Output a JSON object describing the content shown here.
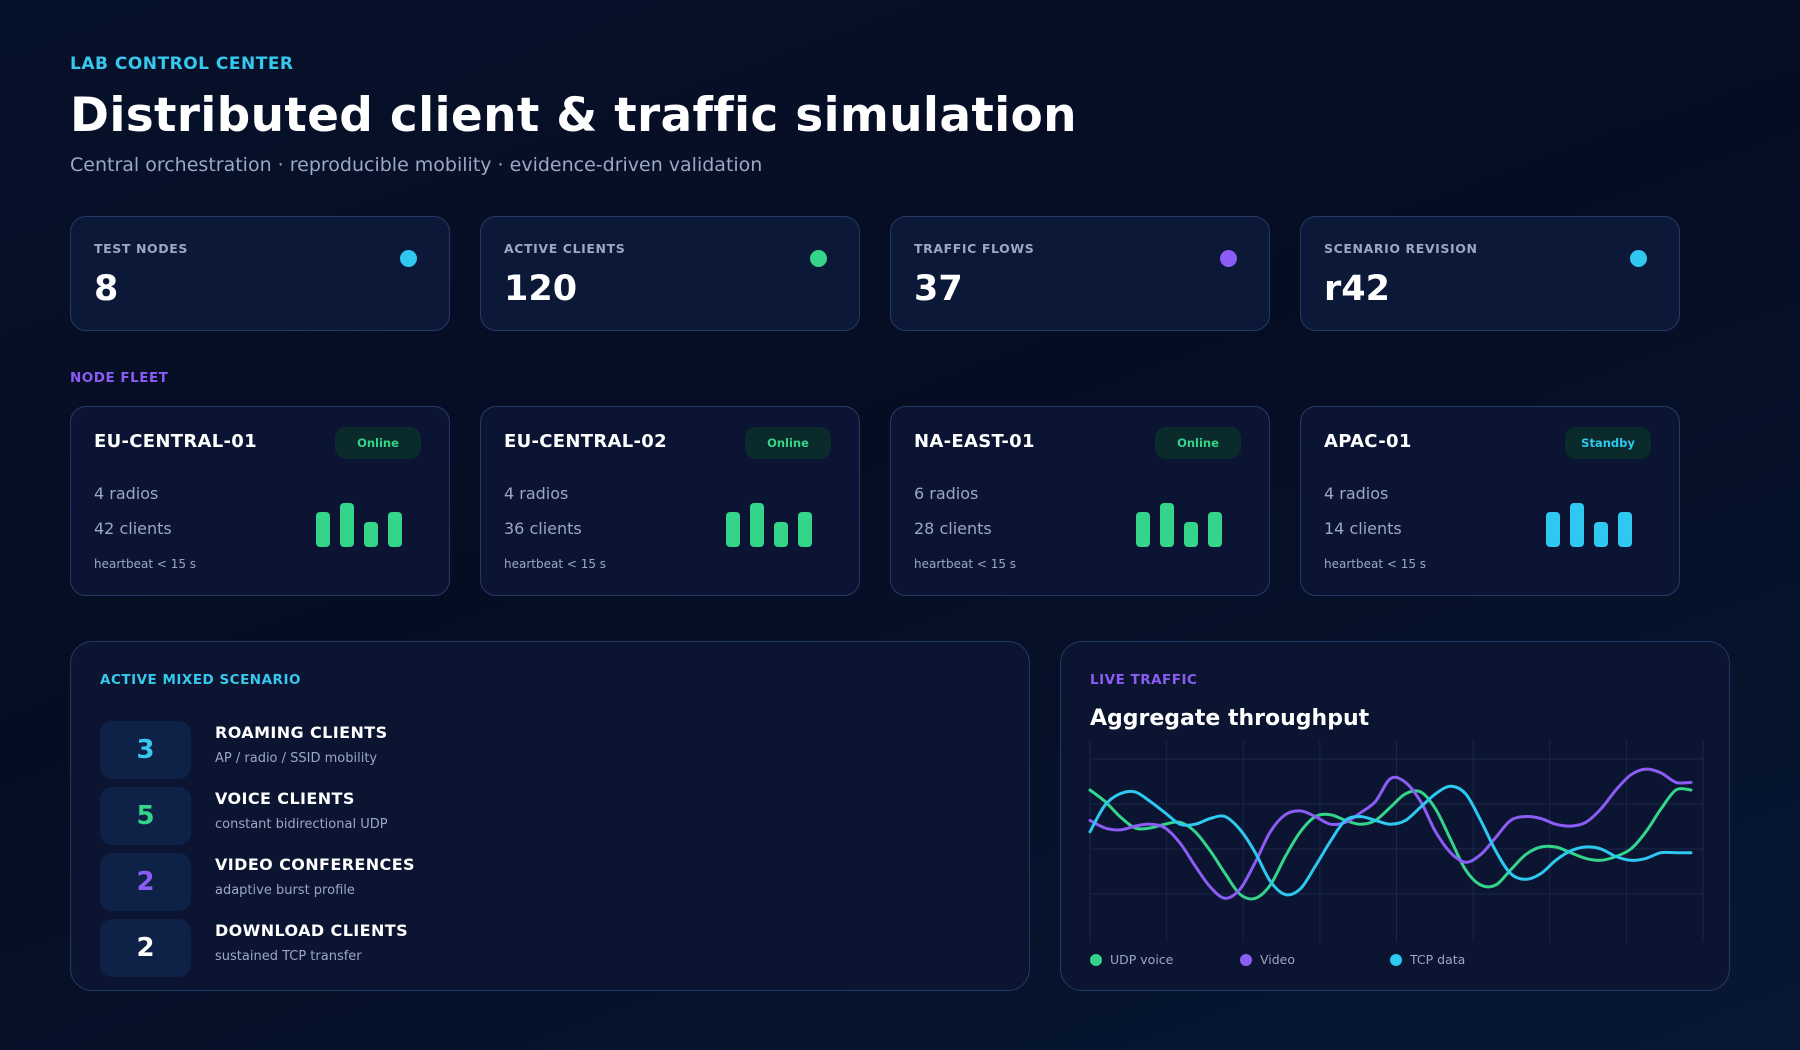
{
  "header": {
    "eyebrow": "LAB CONTROL CENTER",
    "title": "Distributed client & traffic simulation",
    "subtitle": "Central orchestration · reproducible mobility · evidence-driven validation"
  },
  "stats": [
    {
      "label": "TEST NODES",
      "value": "8",
      "dot_color": "#2ec8f0"
    },
    {
      "label": "ACTIVE CLIENTS",
      "value": "120",
      "dot_color": "#34d48a"
    },
    {
      "label": "TRAFFIC FLOWS",
      "value": "37",
      "dot_color": "#8b5cf6"
    },
    {
      "label": "SCENARIO REVISION",
      "value": "r42",
      "dot_color": "#2ec8f0"
    }
  ],
  "fleet": {
    "label": "NODE FLEET",
    "nodes": [
      {
        "name": "EU-CENTRAL-01",
        "status": "Online",
        "status_color": "#34d48a",
        "radios": "4 radios",
        "clients": "42 clients",
        "heartbeat": "heartbeat < 15 s",
        "bar_color": "#34d48a",
        "bar_levels": [
          0.7,
          0.88,
          0.5,
          0.7
        ]
      },
      {
        "name": "EU-CENTRAL-02",
        "status": "Online",
        "status_color": "#34d48a",
        "radios": "4 radios",
        "clients": "36 clients",
        "heartbeat": "heartbeat < 15 s",
        "bar_color": "#34d48a",
        "bar_levels": [
          0.7,
          0.88,
          0.5,
          0.7
        ]
      },
      {
        "name": "NA-EAST-01",
        "status": "Online",
        "status_color": "#34d48a",
        "radios": "6 radios",
        "clients": "28 clients",
        "heartbeat": "heartbeat < 15 s",
        "bar_color": "#34d48a",
        "bar_levels": [
          0.7,
          0.88,
          0.5,
          0.7
        ]
      },
      {
        "name": "APAC-01",
        "status": "Standby",
        "status_color": "#2ec8f0",
        "radios": "4 radios",
        "clients": "14 clients",
        "heartbeat": "heartbeat < 15 s",
        "bar_color": "#2ec8f0",
        "bar_levels": [
          0.7,
          0.88,
          0.5,
          0.7
        ]
      }
    ]
  },
  "scenario": {
    "label": "ACTIVE MIXED SCENARIO",
    "items": [
      {
        "count": "3",
        "count_color": "#38c8ee",
        "title": "ROAMING CLIENTS",
        "desc": "AP / radio / SSID mobility"
      },
      {
        "count": "5",
        "count_color": "#34d48a",
        "title": "VOICE CLIENTS",
        "desc": "constant bidirectional UDP"
      },
      {
        "count": "2",
        "count_color": "#8b5cf6",
        "title": "VIDEO CONFERENCES",
        "desc": "adaptive burst profile"
      },
      {
        "count": "2",
        "count_color": "#ffffff",
        "title": "DOWNLOAD CLIENTS",
        "desc": "sustained TCP transfer"
      }
    ]
  },
  "traffic": {
    "label": "LIVE TRAFFIC",
    "title": "Aggregate throughput"
  },
  "chart_data": {
    "type": "line",
    "title": "Aggregate throughput",
    "xlabel": "",
    "ylabel": "",
    "ylim": [
      0,
      1
    ],
    "grid": true,
    "legend_position": "bottom-left",
    "x": [
      0,
      1,
      2,
      3,
      4,
      5,
      6,
      7,
      8,
      9,
      10,
      11,
      12,
      13,
      14,
      15,
      16,
      17,
      18,
      19,
      20,
      21,
      22,
      23,
      24,
      25,
      26,
      27,
      28,
      29,
      30,
      31,
      32,
      33,
      34,
      35,
      36,
      37,
      38,
      39,
      40
    ],
    "series": [
      {
        "name": "UDP voice",
        "color": "#34d48a",
        "values": [
          0.8,
          0.74,
          0.66,
          0.6,
          0.6,
          0.62,
          0.63,
          0.58,
          0.48,
          0.36,
          0.25,
          0.23,
          0.3,
          0.45,
          0.58,
          0.66,
          0.67,
          0.64,
          0.62,
          0.64,
          0.71,
          0.78,
          0.79,
          0.7,
          0.54,
          0.38,
          0.3,
          0.3,
          0.38,
          0.46,
          0.5,
          0.5,
          0.47,
          0.44,
          0.43,
          0.45,
          0.49,
          0.58,
          0.7,
          0.8,
          0.8
        ]
      },
      {
        "name": "Video",
        "color": "#8b5cf6",
        "values": [
          0.64,
          0.6,
          0.59,
          0.61,
          0.62,
          0.6,
          0.52,
          0.4,
          0.29,
          0.23,
          0.28,
          0.42,
          0.58,
          0.67,
          0.69,
          0.66,
          0.62,
          0.63,
          0.68,
          0.74,
          0.86,
          0.84,
          0.74,
          0.58,
          0.47,
          0.42,
          0.46,
          0.55,
          0.64,
          0.66,
          0.65,
          0.62,
          0.61,
          0.63,
          0.7,
          0.8,
          0.88,
          0.91,
          0.89,
          0.84,
          0.84
        ]
      },
      {
        "name": "TCP data",
        "color": "#2ec8f0",
        "values": [
          0.58,
          0.72,
          0.78,
          0.79,
          0.74,
          0.68,
          0.62,
          0.62,
          0.65,
          0.66,
          0.59,
          0.47,
          0.32,
          0.25,
          0.28,
          0.4,
          0.53,
          0.64,
          0.66,
          0.64,
          0.62,
          0.64,
          0.71,
          0.78,
          0.82,
          0.78,
          0.64,
          0.48,
          0.36,
          0.33,
          0.36,
          0.43,
          0.48,
          0.5,
          0.49,
          0.45,
          0.43,
          0.44,
          0.47,
          0.47,
          0.47
        ]
      }
    ]
  }
}
